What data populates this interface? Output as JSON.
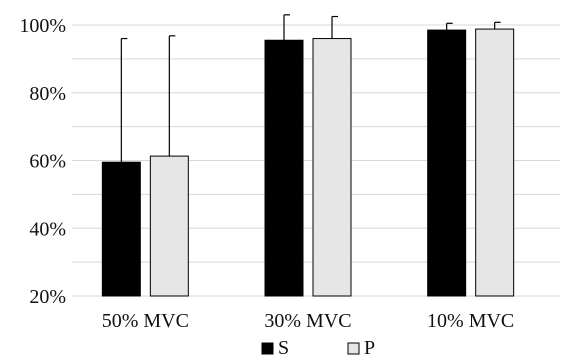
{
  "chart_data": {
    "type": "bar",
    "categories": [
      "50% MVC",
      "30% MVC",
      "10% MVC"
    ],
    "series": [
      {
        "name": "S",
        "values": [
          59.5,
          95.5,
          98.5
        ],
        "errors": [
          36.5,
          7.5,
          2.0
        ],
        "color": "#000000"
      },
      {
        "name": "P",
        "values": [
          61.3,
          96.0,
          98.8
        ],
        "errors": [
          35.5,
          6.5,
          2.0
        ],
        "color": "#e6e6e6"
      }
    ],
    "title": "",
    "xlabel": "",
    "ylabel": "",
    "ylim": [
      20,
      100
    ],
    "yticks": [
      20,
      40,
      60,
      80,
      100
    ],
    "ytick_labels": [
      "20%",
      "40%",
      "60%",
      "80%",
      "100%"
    ],
    "grid": true,
    "grid_color": "#d9d9d9",
    "legend_position": "bottom-center"
  }
}
